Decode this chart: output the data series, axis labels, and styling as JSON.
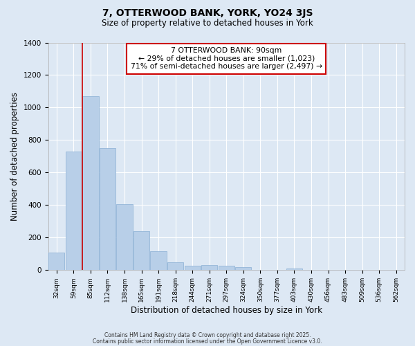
{
  "title": "7, OTTERWOOD BANK, YORK, YO24 3JS",
  "subtitle": "Size of property relative to detached houses in York",
  "xlabel": "Distribution of detached houses by size in York",
  "ylabel": "Number of detached properties",
  "bar_color": "#b8cfe8",
  "bar_edge_color": "#8aafd4",
  "background_color": "#dde8f4",
  "grid_color": "#ffffff",
  "categories": [
    "32sqm",
    "59sqm",
    "85sqm",
    "112sqm",
    "138sqm",
    "165sqm",
    "191sqm",
    "218sqm",
    "244sqm",
    "271sqm",
    "297sqm",
    "324sqm",
    "350sqm",
    "377sqm",
    "403sqm",
    "430sqm",
    "456sqm",
    "483sqm",
    "509sqm",
    "536sqm",
    "562sqm"
  ],
  "values": [
    110,
    730,
    1070,
    750,
    405,
    240,
    115,
    50,
    25,
    30,
    25,
    20,
    0,
    0,
    10,
    0,
    0,
    0,
    0,
    0,
    0
  ],
  "ylim": [
    0,
    1400
  ],
  "yticks": [
    0,
    200,
    400,
    600,
    800,
    1000,
    1200,
    1400
  ],
  "vline_index": 2,
  "vline_color": "#cc0000",
  "annotation_title": "7 OTTERWOOD BANK: 90sqm",
  "annotation_line1": "← 29% of detached houses are smaller (1,023)",
  "annotation_line2": "71% of semi-detached houses are larger (2,497) →",
  "annotation_box_color": "#ffffff",
  "annotation_box_edge": "#cc0000",
  "footer1": "Contains HM Land Registry data © Crown copyright and database right 2025.",
  "footer2": "Contains public sector information licensed under the Open Government Licence v3.0."
}
